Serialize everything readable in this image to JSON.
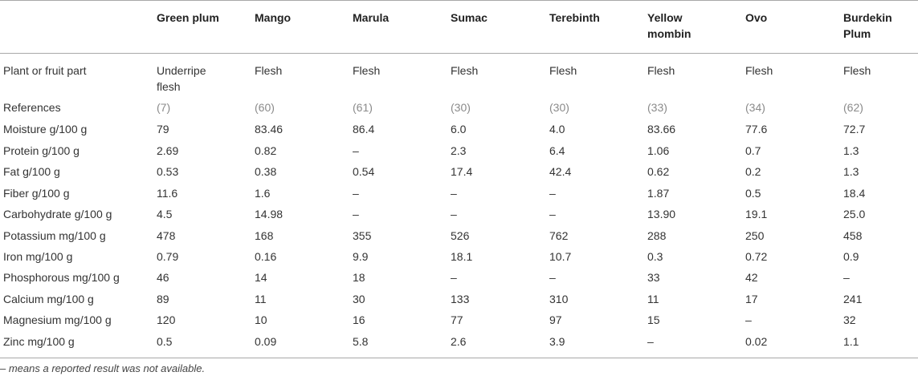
{
  "columns": [
    "Green plum",
    "Mango",
    "Marula",
    "Sumac",
    "Terebinth",
    "Yellow mombin",
    "Ovo",
    "Burdekin Plum"
  ],
  "column_lines": [
    [
      "Green plum"
    ],
    [
      "Mango"
    ],
    [
      "Marula"
    ],
    [
      "Sumac"
    ],
    [
      "Terebinth"
    ],
    [
      "Yellow",
      "mombin"
    ],
    [
      "Ovo"
    ],
    [
      "Burdekin",
      "Plum"
    ]
  ],
  "rows": [
    {
      "label": "Plant or fruit part",
      "values": [
        "Underripe flesh",
        "Flesh",
        "Flesh",
        "Flesh",
        "Flesh",
        "Flesh",
        "Flesh",
        "Flesh"
      ]
    },
    {
      "label": "References",
      "values": [
        "(7)",
        "(60)",
        "(61)",
        "(30)",
        "(30)",
        "(33)",
        "(34)",
        "(62)"
      ]
    },
    {
      "label": "Moisture g/100 g",
      "values": [
        "79",
        "83.46",
        "86.4",
        "6.0",
        "4.0",
        "83.66",
        "77.6",
        "72.7"
      ]
    },
    {
      "label": "Protein g/100 g",
      "values": [
        "2.69",
        "0.82",
        "–",
        "2.3",
        "6.4",
        "1.06",
        "0.7",
        "1.3"
      ]
    },
    {
      "label": "Fat g/100 g",
      "values": [
        "0.53",
        "0.38",
        "0.54",
        "17.4",
        "42.4",
        "0.62",
        "0.2",
        "1.3"
      ]
    },
    {
      "label": "Fiber g/100 g",
      "values": [
        "11.6",
        "1.6",
        "–",
        "–",
        "–",
        "1.87",
        "0.5",
        "18.4"
      ]
    },
    {
      "label": "Carbohydrate g/100 g",
      "values": [
        "4.5",
        "14.98",
        "–",
        "–",
        "–",
        "13.90",
        "19.1",
        "25.0"
      ]
    },
    {
      "label": "Potassium mg/100 g",
      "values": [
        "478",
        "168",
        "355",
        "526",
        "762",
        "288",
        "250",
        "458"
      ]
    },
    {
      "label": "Iron mg/100 g",
      "values": [
        "0.79",
        "0.16",
        "9.9",
        "18.1",
        "10.7",
        "0.3",
        "0.72",
        "0.9"
      ]
    },
    {
      "label": "Phosphorous mg/100 g",
      "values": [
        "46",
        "14",
        "18",
        "–",
        "–",
        "33",
        "42",
        "–"
      ]
    },
    {
      "label": "Calcium mg/100 g",
      "values": [
        "89",
        "11",
        "30",
        "133",
        "310",
        "11",
        "17",
        "241"
      ]
    },
    {
      "label": "Magnesium mg/100 g",
      "values": [
        "120",
        "10",
        "16",
        "77",
        "97",
        "15",
        "–",
        "32"
      ]
    },
    {
      "label": "Zinc mg/100 g",
      "values": [
        "0.5",
        "0.09",
        "5.8",
        "2.6",
        "3.9",
        "–",
        "0.02",
        "1.1"
      ]
    }
  ],
  "footnote": "– means a reported result was not available."
}
